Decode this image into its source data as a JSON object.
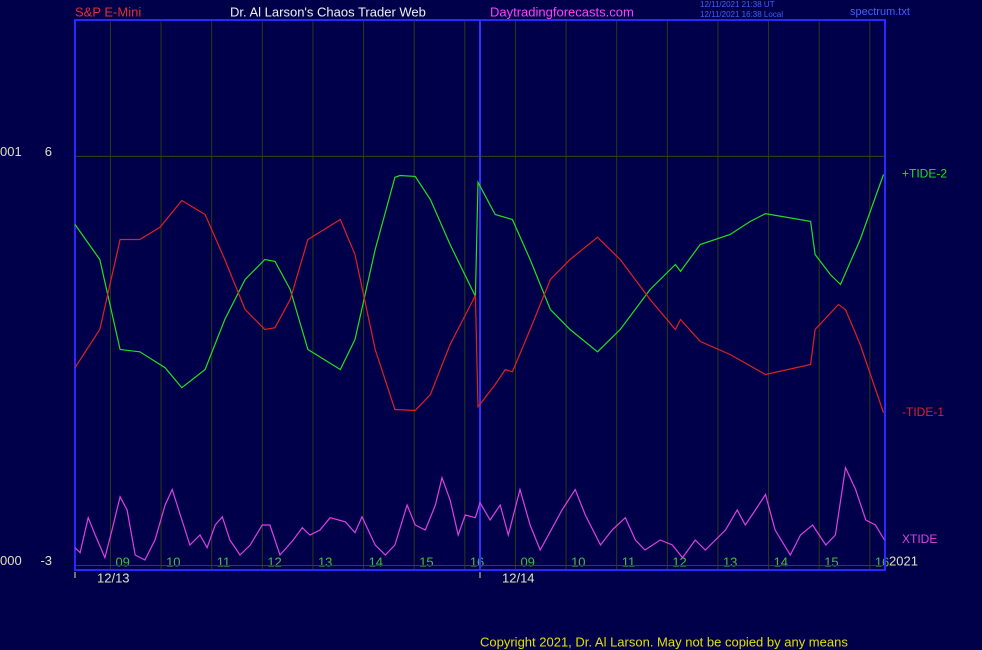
{
  "header": {
    "symbol": "S&P E-Mini",
    "title": "Dr. Al Larson's Chaos Trader Web",
    "site": "Daytradingforecasts.com",
    "timestamp_ut": "12/11/2021 21:38 UT",
    "timestamp_local": "12/11/2021 16:38 Local",
    "file": "spectrum.txt"
  },
  "footer": {
    "copyright": "Copyright 2021, Dr. Al Larson. May not be copied by any means"
  },
  "chart_data": {
    "type": "line",
    "xlim": [
      8.3,
      24.3
    ],
    "ylim": [
      -3.1,
      9.0
    ],
    "xticks": [
      {
        "value": 9,
        "label": "09"
      },
      10,
      11,
      12,
      13,
      14,
      15,
      16,
      {
        "value": 17,
        "label": "09"
      },
      {
        "value": 18,
        "label": "10"
      },
      {
        "value": 19,
        "label": "11"
      },
      {
        "value": 20,
        "label": "12"
      },
      {
        "value": 21,
        "label": "13"
      },
      {
        "value": 22,
        "label": "14"
      },
      {
        "value": 23,
        "label": "15"
      },
      {
        "value": 24,
        "label": "16"
      }
    ],
    "day_ticks": [
      {
        "value": 8.3,
        "label": "12/13"
      },
      {
        "value": 16.3,
        "label": "12/14"
      }
    ],
    "year_label": "2021",
    "yticks": [
      6,
      -3
    ],
    "y_tick_codes": [
      "001",
      "000"
    ],
    "grid": true,
    "series": [
      {
        "name": "+TIDE-2",
        "color": "#20e020",
        "x": [
          8.3,
          8.79,
          9.19,
          9.58,
          10.08,
          10.41,
          10.87,
          11.26,
          11.66,
          12.05,
          12.25,
          12.55,
          12.9,
          13.54,
          13.83,
          14.23,
          14.62,
          14.72,
          15.02,
          15.32,
          15.71,
          16.21,
          16.26,
          16.6,
          16.94,
          17.29,
          17.69,
          18.08,
          18.62,
          19.07,
          19.66,
          20.16,
          20.26,
          20.65,
          21.24,
          21.64,
          21.94,
          22.83,
          22.92,
          23.22,
          23.42,
          23.81,
          24.27
        ],
        "values": [
          4.5,
          3.73,
          1.75,
          1.7,
          1.35,
          0.91,
          1.31,
          2.41,
          3.29,
          3.73,
          3.69,
          3.07,
          1.75,
          1.31,
          1.97,
          3.95,
          5.54,
          5.58,
          5.56,
          5.05,
          4.06,
          2.92,
          5.43,
          4.72,
          4.61,
          3.73,
          2.63,
          2.19,
          1.7,
          2.19,
          3.07,
          3.62,
          3.47,
          4.06,
          4.28,
          4.57,
          4.74,
          4.57,
          3.84,
          3.4,
          3.18,
          4.17,
          5.6
        ]
      },
      {
        "name": "-TIDE-1",
        "color": "#e02020",
        "x": [
          8.3,
          8.79,
          9.19,
          9.58,
          9.98,
          10.41,
          10.87,
          11.26,
          11.66,
          12.05,
          12.25,
          12.55,
          12.9,
          13.54,
          13.83,
          14.23,
          14.62,
          15.02,
          15.32,
          15.71,
          16.21,
          16.26,
          16.6,
          16.8,
          16.94,
          17.29,
          17.69,
          18.08,
          18.62,
          19.07,
          19.66,
          20.16,
          20.26,
          20.65,
          21.24,
          21.94,
          22.83,
          22.92,
          23.38,
          23.52,
          23.81,
          24.27
        ],
        "values": [
          1.35,
          2.19,
          4.17,
          4.17,
          4.44,
          5.03,
          4.72,
          3.73,
          2.63,
          2.19,
          2.23,
          2.85,
          4.17,
          4.61,
          3.84,
          1.75,
          0.43,
          0.41,
          0.76,
          1.86,
          2.94,
          0.49,
          0.98,
          1.31,
          1.26,
          2.19,
          3.29,
          3.73,
          4.22,
          3.73,
          2.85,
          2.19,
          2.41,
          1.93,
          1.64,
          1.2,
          1.42,
          2.19,
          2.74,
          2.63,
          1.86,
          0.36
        ]
      },
      {
        "name": "XTIDE",
        "color": "#e040e0",
        "x": [
          8.3,
          8.4,
          8.56,
          8.7,
          8.89,
          9.03,
          9.19,
          9.33,
          9.49,
          9.68,
          9.88,
          10.08,
          10.22,
          10.38,
          10.57,
          10.77,
          10.91,
          11.07,
          11.21,
          11.36,
          11.56,
          11.76,
          12.0,
          12.15,
          12.35,
          12.61,
          12.79,
          12.94,
          13.14,
          13.34,
          13.64,
          13.83,
          13.97,
          14.23,
          14.43,
          14.62,
          14.86,
          15.02,
          15.22,
          15.42,
          15.55,
          15.71,
          15.87,
          16.01,
          16.21,
          16.3,
          16.5,
          16.7,
          16.86,
          17.09,
          17.29,
          17.49,
          17.73,
          17.92,
          18.18,
          18.38,
          18.68,
          18.91,
          19.17,
          19.37,
          19.56,
          19.86,
          20.1,
          20.3,
          20.55,
          20.75,
          20.95,
          21.15,
          21.38,
          21.54,
          21.74,
          21.94,
          22.13,
          22.43,
          22.63,
          22.87,
          23.13,
          23.32,
          23.52,
          23.72,
          23.92,
          24.11,
          24.29
        ],
        "values": [
          -2.61,
          -2.72,
          -1.95,
          -2.33,
          -2.83,
          -2.22,
          -1.49,
          -1.78,
          -2.77,
          -2.88,
          -2.44,
          -1.67,
          -1.33,
          -1.89,
          -2.55,
          -2.33,
          -2.61,
          -2.11,
          -1.93,
          -2.44,
          -2.77,
          -2.55,
          -2.11,
          -2.11,
          -2.77,
          -2.44,
          -2.17,
          -2.33,
          -2.22,
          -1.95,
          -2.04,
          -2.28,
          -1.93,
          -2.55,
          -2.77,
          -2.55,
          -1.67,
          -2.11,
          -2.22,
          -1.67,
          -1.07,
          -1.56,
          -2.33,
          -1.89,
          -1.95,
          -1.62,
          -2.0,
          -1.67,
          -2.33,
          -1.33,
          -2.11,
          -2.66,
          -2.17,
          -1.78,
          -1.33,
          -1.89,
          -2.55,
          -2.22,
          -1.95,
          -2.44,
          -2.66,
          -2.44,
          -2.55,
          -2.83,
          -2.44,
          -2.66,
          -2.44,
          -2.22,
          -1.78,
          -2.11,
          -1.78,
          -1.44,
          -2.22,
          -2.77,
          -2.33,
          -2.11,
          -2.55,
          -2.33,
          -0.85,
          -1.33,
          -2.0,
          -2.11,
          -2.44
        ]
      }
    ]
  }
}
